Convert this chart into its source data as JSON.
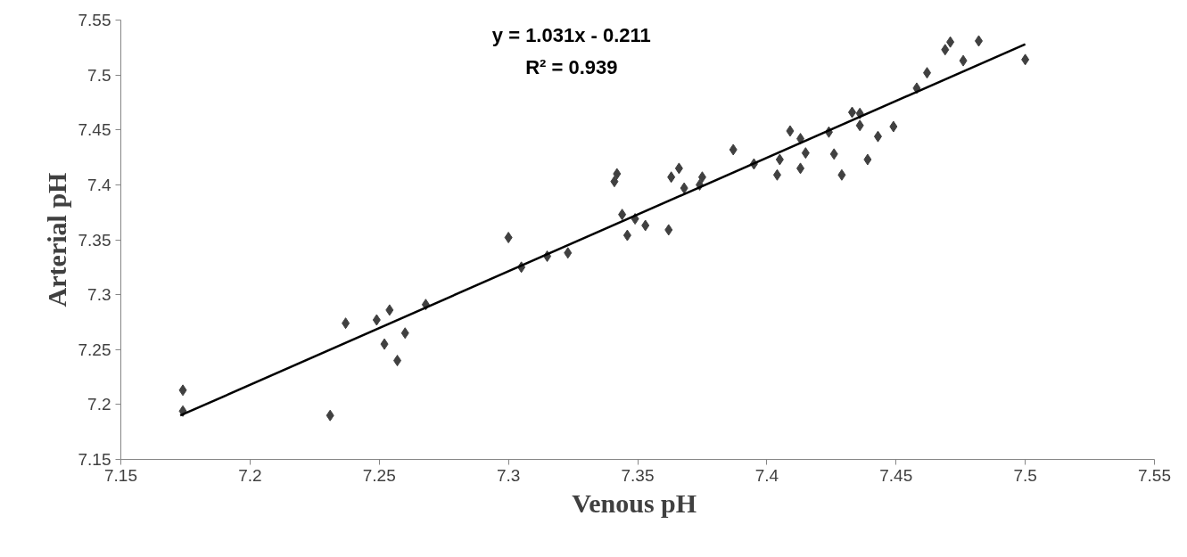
{
  "chart_data": {
    "type": "scatter",
    "xlabel": "Venous  pH",
    "ylabel": "Arterial pH",
    "annotations": [
      "y = 1.031x - 0.211",
      "R² = 0.939"
    ],
    "xlim": [
      7.15,
      7.55
    ],
    "xticks": [
      7.15,
      7.2,
      7.25,
      7.3,
      7.35,
      7.4,
      7.45,
      7.5,
      7.55
    ],
    "ylim": [
      7.15,
      7.55
    ],
    "yticks": [
      7.15,
      7.2,
      7.25,
      7.3,
      7.35,
      7.4,
      7.45,
      7.5,
      7.55
    ],
    "grid": false,
    "series": [
      {
        "color": "#404040",
        "marker": "diamond",
        "x": [
          7.174,
          7.174,
          7.231,
          7.237,
          7.249,
          7.254,
          7.252,
          7.257,
          7.26,
          7.268,
          7.3,
          7.305,
          7.315,
          7.323,
          7.342,
          7.341,
          7.344,
          7.349,
          7.346,
          7.353,
          7.362,
          7.363,
          7.366,
          7.368,
          7.374,
          7.375,
          7.387,
          7.395,
          7.409,
          7.413,
          7.405,
          7.404,
          7.415,
          7.413,
          7.424,
          7.426,
          7.429,
          7.433,
          7.436,
          7.436,
          7.439,
          7.443,
          7.449,
          7.458,
          7.462,
          7.469,
          7.471,
          7.476,
          7.482,
          7.5
        ],
        "values": [
          7.213,
          7.194,
          7.19,
          7.274,
          7.277,
          7.286,
          7.255,
          7.24,
          7.265,
          7.291,
          7.352,
          7.325,
          7.335,
          7.338,
          7.41,
          7.403,
          7.373,
          7.369,
          7.354,
          7.363,
          7.359,
          7.407,
          7.415,
          7.397,
          7.4,
          7.407,
          7.432,
          7.419,
          7.449,
          7.442,
          7.423,
          7.409,
          7.429,
          7.415,
          7.448,
          7.428,
          7.409,
          7.466,
          7.465,
          7.454,
          7.423,
          7.444,
          7.453,
          7.488,
          7.502,
          7.523,
          7.53,
          7.513,
          7.531,
          7.514
        ]
      },
      {
        "type": "line",
        "color": "#000000",
        "line_style": "solid",
        "x": [
          7.173,
          7.5
        ],
        "values": [
          7.19,
          7.528
        ]
      }
    ]
  }
}
